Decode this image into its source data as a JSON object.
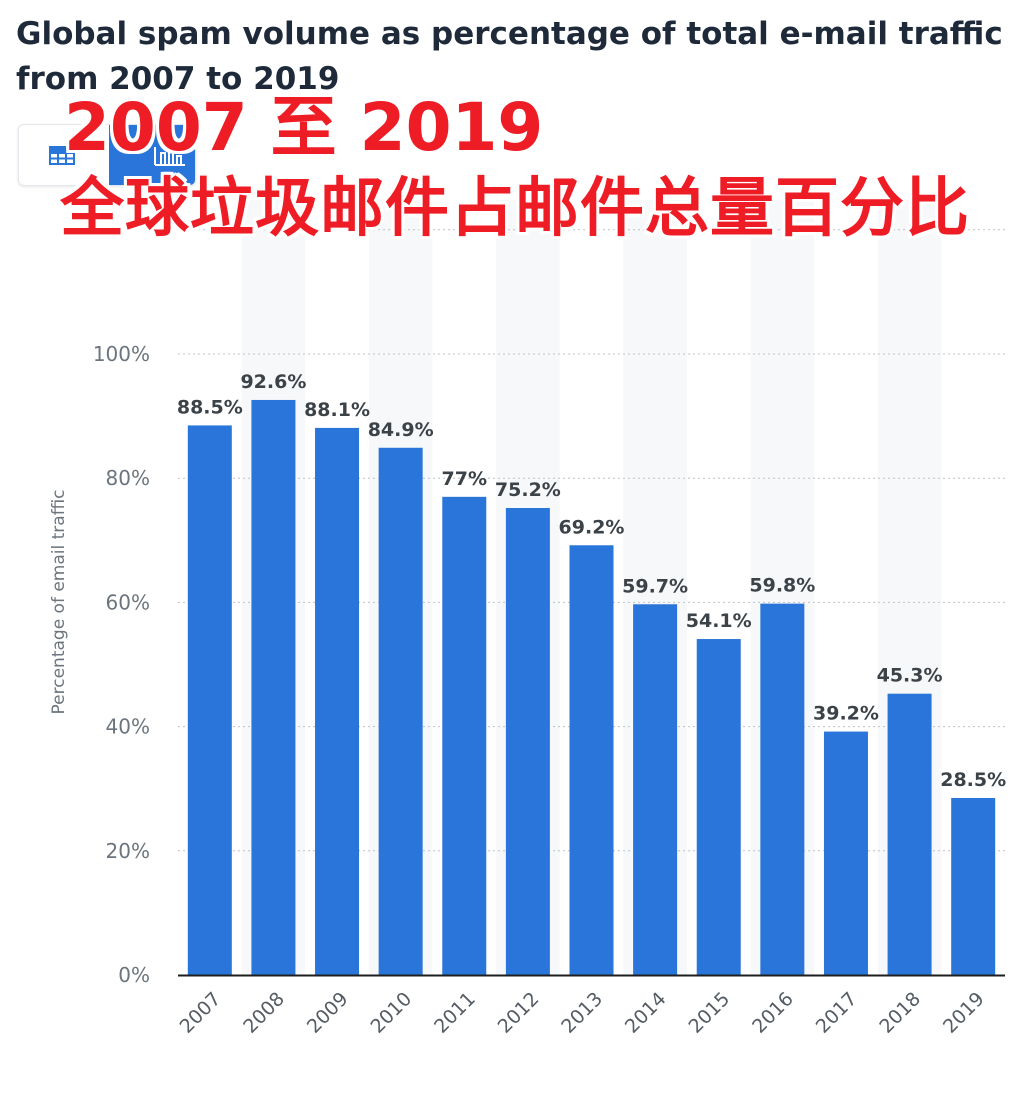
{
  "header": {
    "title": "Global spam volume as percentage of total e-mail traffic from 2007 to 2019"
  },
  "view_toggle": {
    "table_icon": "table-icon",
    "chart_icon": "bar-chart-icon",
    "active": "chart",
    "accent": "#2a75d9"
  },
  "overlay": {
    "line1": "2007 至 2019",
    "line2": "全球垃圾邮件占邮件总量百分比",
    "color": "#ee1c25"
  },
  "chart_data": {
    "type": "bar",
    "title": "Global spam volume as percentage of total e-mail traffic from 2007 to 2019",
    "xlabel": "",
    "ylabel": "Percentage of email traffic",
    "categories": [
      "2007",
      "2008",
      "2009",
      "2010",
      "2011",
      "2012",
      "2013",
      "2014",
      "2015",
      "2016",
      "2017",
      "2018",
      "2019"
    ],
    "values": [
      88.5,
      92.6,
      88.1,
      84.9,
      77,
      75.2,
      69.2,
      59.7,
      54.1,
      59.8,
      39.2,
      45.3,
      28.5
    ],
    "data_labels": [
      "88.5%",
      "92.6%",
      "88.1%",
      "84.9%",
      "77%",
      "75.2%",
      "69.2%",
      "59.7%",
      "54.1%",
      "59.8%",
      "39.2%",
      "45.3%",
      "28.5%"
    ],
    "yticks": [
      0,
      20,
      40,
      60,
      80,
      100
    ],
    "ytick_labels": [
      "0%",
      "20%",
      "40%",
      "60%",
      "80%",
      "100%"
    ],
    "ylim": [
      0,
      100
    ],
    "grid": true,
    "bar_color": "#2a75d9"
  }
}
